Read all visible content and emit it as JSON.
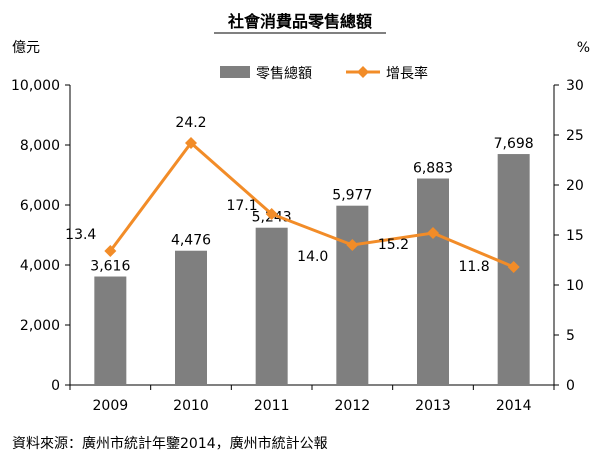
{
  "chart_data": {
    "type": "bar+line",
    "title": "社會消費品零售總額",
    "categories": [
      "2009",
      "2010",
      "2011",
      "2012",
      "2013",
      "2014"
    ],
    "series": [
      {
        "name": "零售總額",
        "type": "bar",
        "axis": "left",
        "values": [
          3616,
          4476,
          5243,
          5977,
          6883,
          7698
        ],
        "labels": [
          "3,616",
          "4,476",
          "5,243",
          "5,977",
          "6,883",
          "7,698"
        ],
        "color": "#7f7f7f"
      },
      {
        "name": "增長率",
        "type": "line",
        "axis": "right",
        "values": [
          13.4,
          24.2,
          17.1,
          14.0,
          15.2,
          11.8
        ],
        "labels": [
          "13.4",
          "24.2",
          "17.1",
          "14.0",
          "15.2",
          "11.8"
        ],
        "color": "#f28c28"
      }
    ],
    "left_unit": "億元",
    "right_unit": "%",
    "left_axis": {
      "min": 0,
      "max": 10000,
      "ticks": [
        0,
        2000,
        4000,
        6000,
        8000,
        10000
      ],
      "tick_labels": [
        "0",
        "2,000",
        "4,000",
        "6,000",
        "8,000",
        "10,000"
      ]
    },
    "right_axis": {
      "min": 0,
      "max": 30,
      "ticks": [
        0,
        5,
        10,
        15,
        20,
        25,
        30
      ],
      "tick_labels": [
        "0",
        "5",
        "10",
        "15",
        "20",
        "25",
        "30"
      ]
    },
    "legend_position": "top-center",
    "grid": false
  },
  "source": "資料來源：廣州市統計年鑒2014，廣州市統計公報"
}
